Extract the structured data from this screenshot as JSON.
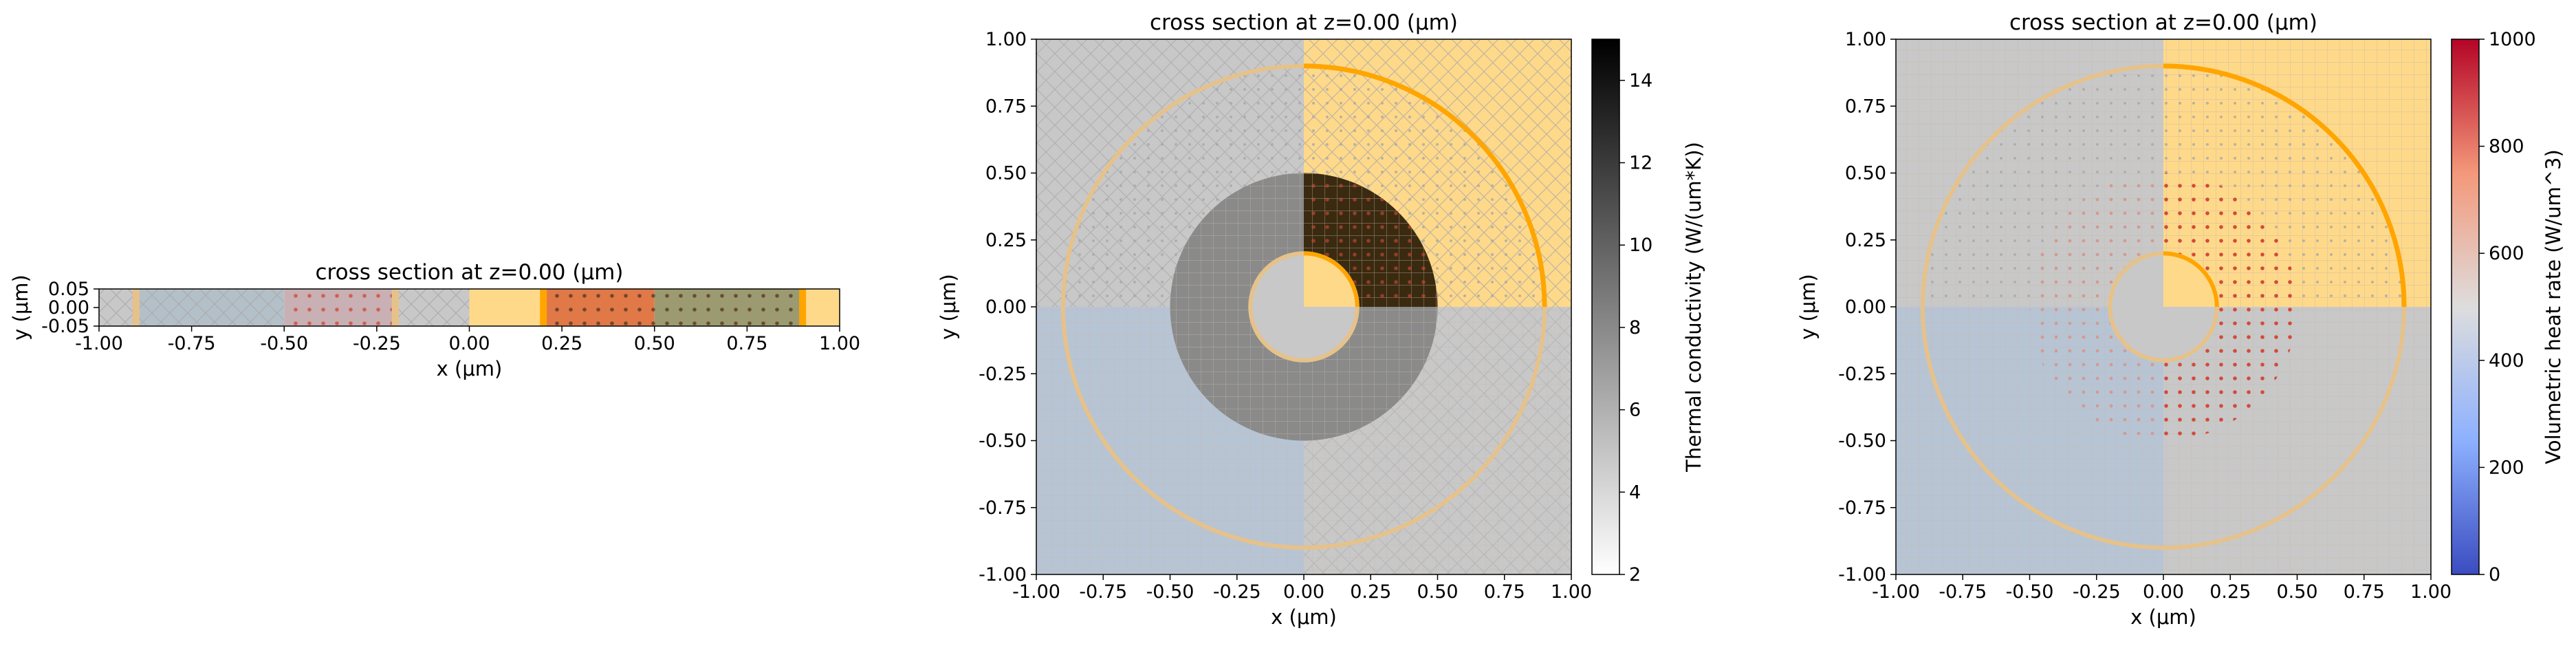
{
  "chart_data": [
    {
      "type": "heatmap",
      "title": "cross section at z=0.00 (μm)",
      "xlabel": "x (μm)",
      "ylabel": "y (μm)",
      "xlim": [
        -1.0,
        1.0
      ],
      "ylim": [
        -0.05,
        0.05
      ],
      "xticks": [
        "-1.00",
        "-0.75",
        "-0.50",
        "-0.25",
        "0.00",
        "0.25",
        "0.50",
        "0.75",
        "1.00"
      ],
      "yticks": [
        "-0.05",
        "0.00",
        "0.05"
      ],
      "grid": false,
      "segments": [
        {
          "x": [
            -1.0,
            -0.9
          ],
          "fill": "#c8c8c8",
          "hatch": "cross"
        },
        {
          "x": [
            -0.9,
            -0.5
          ],
          "fill": "#b4c0c8",
          "hatch": "cross"
        },
        {
          "x": [
            -0.5,
            -0.2
          ],
          "fill": "#c8b0b4",
          "hatch": "dots-red"
        },
        {
          "x": [
            -0.2,
            0.0
          ],
          "fill": "#c8c8c8",
          "hatch": "cross"
        },
        {
          "x": [
            0.0,
            0.2
          ],
          "fill": "#ffd98a",
          "hatch": "none"
        },
        {
          "x": [
            0.2,
            0.5
          ],
          "fill": "#e07848",
          "hatch": "dots-dark"
        },
        {
          "x": [
            0.5,
            0.9
          ],
          "fill": "#9c9a70",
          "hatch": "dots-dark"
        },
        {
          "x": [
            0.9,
            1.0
          ],
          "fill": "#ffd98a",
          "hatch": "none"
        }
      ],
      "boundaries_x": [
        -0.9,
        -0.2,
        0.2,
        0.9
      ]
    },
    {
      "type": "heatmap",
      "title": "cross section at z=0.00 (μm)",
      "xlabel": "x (μm)",
      "ylabel": "y (μm)",
      "xlim": [
        -1.0,
        1.0
      ],
      "ylim": [
        -1.0,
        1.0
      ],
      "xticks": [
        "-1.00",
        "-0.75",
        "-0.50",
        "-0.25",
        "0.00",
        "0.25",
        "0.50",
        "0.75",
        "1.00"
      ],
      "yticks": [
        "-1.00",
        "-0.75",
        "-0.50",
        "-0.25",
        "0.00",
        "0.25",
        "0.50",
        "0.75",
        "1.00"
      ],
      "grid": false,
      "structures": {
        "ring_inner_radius": 0.2,
        "ring_outer_radius": 0.5,
        "outer_circle_radius": 0.9
      },
      "ring_color": "#3a2a10",
      "colorbar": {
        "label": "Thermal conductivity (W/(um*K))",
        "range": [
          2,
          15
        ],
        "ticks": [
          "2",
          "4",
          "6",
          "8",
          "10",
          "12",
          "14"
        ],
        "colormap": "white-to-black"
      }
    },
    {
      "type": "heatmap",
      "title": "cross section at z=0.00 (μm)",
      "xlabel": "x (μm)",
      "ylabel": "y (μm)",
      "xlim": [
        -1.0,
        1.0
      ],
      "ylim": [
        -1.0,
        1.0
      ],
      "xticks": [
        "-1.00",
        "-0.75",
        "-0.50",
        "-0.25",
        "0.00",
        "0.25",
        "0.50",
        "0.75",
        "1.00"
      ],
      "yticks": [
        "-1.00",
        "-0.75",
        "-0.50",
        "-0.25",
        "0.00",
        "0.25",
        "0.50",
        "0.75",
        "1.00"
      ],
      "grid": false,
      "structures": {
        "ring_inner_radius": 0.2,
        "ring_outer_radius": 0.5,
        "outer_circle_radius": 0.9
      },
      "colorbar": {
        "label": "Volumetric heat rate (W/um^3)",
        "range": [
          0,
          1000
        ],
        "ticks": [
          "0",
          "200",
          "400",
          "600",
          "800",
          "1000"
        ],
        "colormap": "coolwarm"
      }
    }
  ],
  "colors": {
    "silicon_gray": "#c8c8c8",
    "substrate_blue": "#b7c4d4",
    "oxide_yellow": "#ffd98a",
    "boundary_orange": "#ffa500",
    "boundary_pale": "#e6c28a",
    "dots_red": "#d24a3a"
  }
}
